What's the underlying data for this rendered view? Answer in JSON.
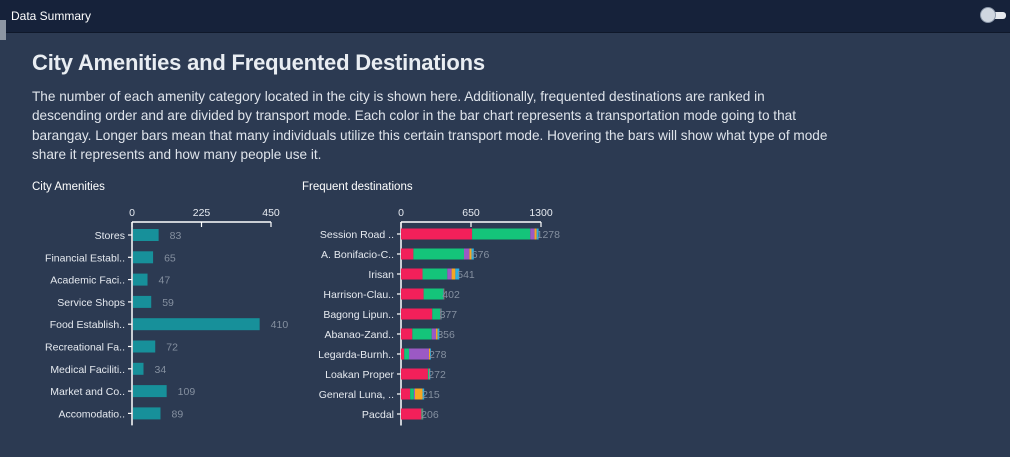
{
  "window": {
    "title": "Data Summary"
  },
  "page": {
    "title": "City Amenities and Frequented Destinations",
    "description": "The number of each amenity category located in the city is shown here. Additionally, frequented destinations are ranked in descending order and are divided by transport mode. Each color in the bar chart represents a transportation mode going to that barangay. Longer bars mean that many individuals utilize this certain transport mode. Hovering the bars will show what type of mode share it represents and how many people use it."
  },
  "colors": {
    "background": "#2c3a52",
    "header": "#16223a",
    "amenity_bar": "#17909a",
    "mode_1": "#f2205a",
    "mode_2": "#14c47a",
    "mode_3": "#9b59c4",
    "mode_4": "#f5a623",
    "mode_5": "#2bb0e0"
  },
  "chart_data": [
    {
      "type": "bar",
      "orientation": "horizontal",
      "title": "City Amenities",
      "categories": [
        "Stores",
        "Financial Establ..",
        "Academic Faci..",
        "Service Shops",
        "Food Establish..",
        "Recreational Fa..",
        "Medical Faciliti..",
        "Market and Co..",
        "Accomodatio.."
      ],
      "values": [
        83,
        65,
        47,
        59,
        410,
        72,
        34,
        109,
        89
      ],
      "xticks": [
        "0",
        "225",
        "450"
      ],
      "xlim": [
        0,
        450
      ]
    },
    {
      "type": "bar",
      "orientation": "horizontal",
      "stacked": true,
      "title": "Frequent destinations",
      "categories": [
        "Session Road ..",
        "A. Bonifacio-C..",
        "Irisan",
        "Harrison-Clau..",
        "Bagong Lipun..",
        "Abanao-Zand..",
        "Legarda-Burnh..",
        "Loakan Proper",
        "General Luna, ..",
        "Pacdal"
      ],
      "totals": [
        "1278",
        "676",
        "541",
        "402",
        "377",
        "356",
        "278",
        "272",
        "215",
        "206"
      ],
      "xticks": [
        "0",
        "650",
        "1300"
      ],
      "xlim": [
        0,
        1300
      ],
      "series": [
        {
          "values": [
            660,
            115,
            200,
            210,
            290,
            105,
            30,
            250,
            85,
            190
          ]
        },
        {
          "values": [
            540,
            470,
            230,
            185,
            75,
            180,
            45,
            10,
            35,
            10
          ]
        },
        {
          "values": [
            40,
            50,
            40,
            5,
            5,
            40,
            185,
            5,
            10,
            3
          ]
        },
        {
          "values": [
            20,
            20,
            35,
            2,
            4,
            15,
            10,
            4,
            70,
            2
          ]
        },
        {
          "values": [
            18,
            21,
            36,
            0,
            3,
            16,
            8,
            3,
            15,
            1
          ]
        }
      ]
    }
  ]
}
